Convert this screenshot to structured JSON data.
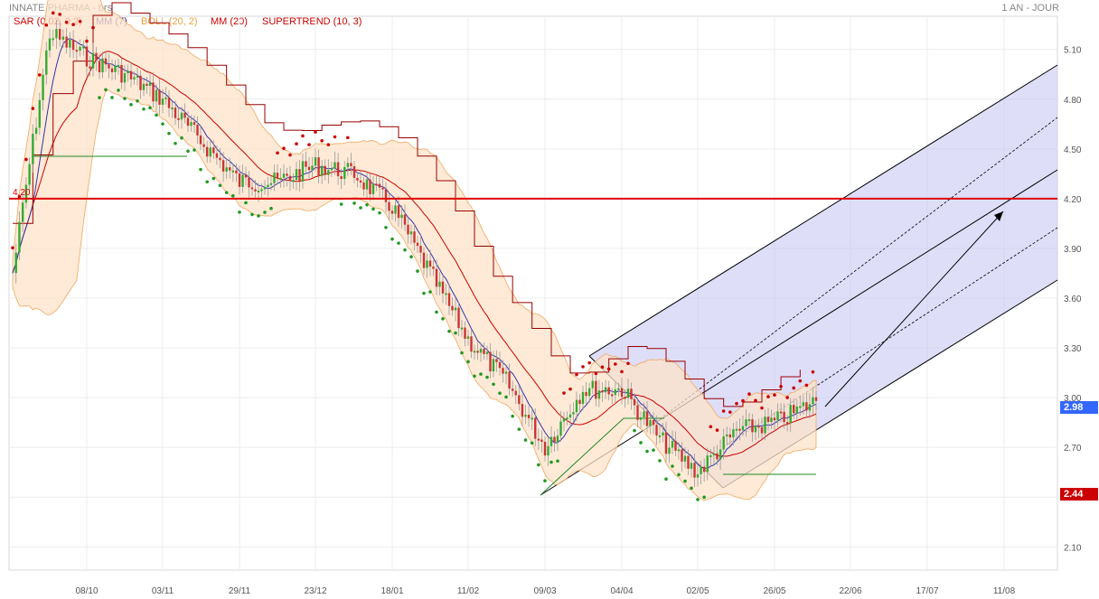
{
  "header": {
    "title": "INNATE PHARMA - brs",
    "period": "1 AN - JOUR"
  },
  "legend": [
    {
      "label": "SAR (0.02, 0.2)",
      "color": "#cc0000"
    },
    {
      "label": "MM (7)",
      "color": "#3333aa"
    },
    {
      "label": "BOLL (20, 2)",
      "color": "#e8a040"
    },
    {
      "label": "MM (20)",
      "color": "#cc0000"
    },
    {
      "label": "SUPERTREND (10, 3)",
      "color": "#cc0000"
    }
  ],
  "tags": {
    "last_price": "2.98",
    "last_price_color": "#3366ff",
    "low_price": "2.44",
    "low_price_color": "#cc0000"
  },
  "chart_data": {
    "type": "line",
    "title": "INNATE PHARMA - brs",
    "x_ticks": [
      "08/10",
      "03/11",
      "29/11",
      "23/12",
      "18/01",
      "11/02",
      "09/03",
      "04/04",
      "02/05",
      "26/05",
      "22/06",
      "17/07",
      "11/08"
    ],
    "y_ticks": [
      2.1,
      2.4,
      2.7,
      3.0,
      3.3,
      3.6,
      3.9,
      4.2,
      4.5,
      4.8,
      5.1
    ],
    "ylim": [
      1.96,
      5.3
    ],
    "horizontal_line": {
      "value": 4.2,
      "label": "4.20",
      "color": "#dd0000"
    },
    "price_series": [
      {
        "date": "09/09",
        "price": 3.75
      },
      {
        "date": "22/09",
        "price": 5.2
      },
      {
        "date": "08/10",
        "price": 5.05
      },
      {
        "date": "20/10",
        "price": 4.95
      },
      {
        "date": "03/11",
        "price": 4.8
      },
      {
        "date": "15/11",
        "price": 4.55
      },
      {
        "date": "29/11",
        "price": 4.3
      },
      {
        "date": "12/12",
        "price": 4.3
      },
      {
        "date": "23/12",
        "price": 4.4
      },
      {
        "date": "06/01",
        "price": 4.35
      },
      {
        "date": "18/01",
        "price": 4.15
      },
      {
        "date": "28/01",
        "price": 3.75
      },
      {
        "date": "11/02",
        "price": 3.35
      },
      {
        "date": "25/02",
        "price": 3.1
      },
      {
        "date": "09/03",
        "price": 2.7
      },
      {
        "date": "22/03",
        "price": 3.05
      },
      {
        "date": "04/04",
        "price": 3.05
      },
      {
        "date": "18/04",
        "price": 2.75
      },
      {
        "date": "02/05",
        "price": 2.55
      },
      {
        "date": "14/05",
        "price": 2.8
      },
      {
        "date": "26/05",
        "price": 2.85
      },
      {
        "date": "05/06",
        "price": 2.98
      }
    ],
    "indicators": [
      "SAR (0.02, 0.2)",
      "MM (7)",
      "BOLL (20, 2)",
      "MM (20)",
      "SUPERTREND (10, 3)"
    ],
    "pitchfork_channel": {
      "from_date": "09/03",
      "to_date": "11/08",
      "color": "#c8c8f5"
    },
    "grid": true
  }
}
